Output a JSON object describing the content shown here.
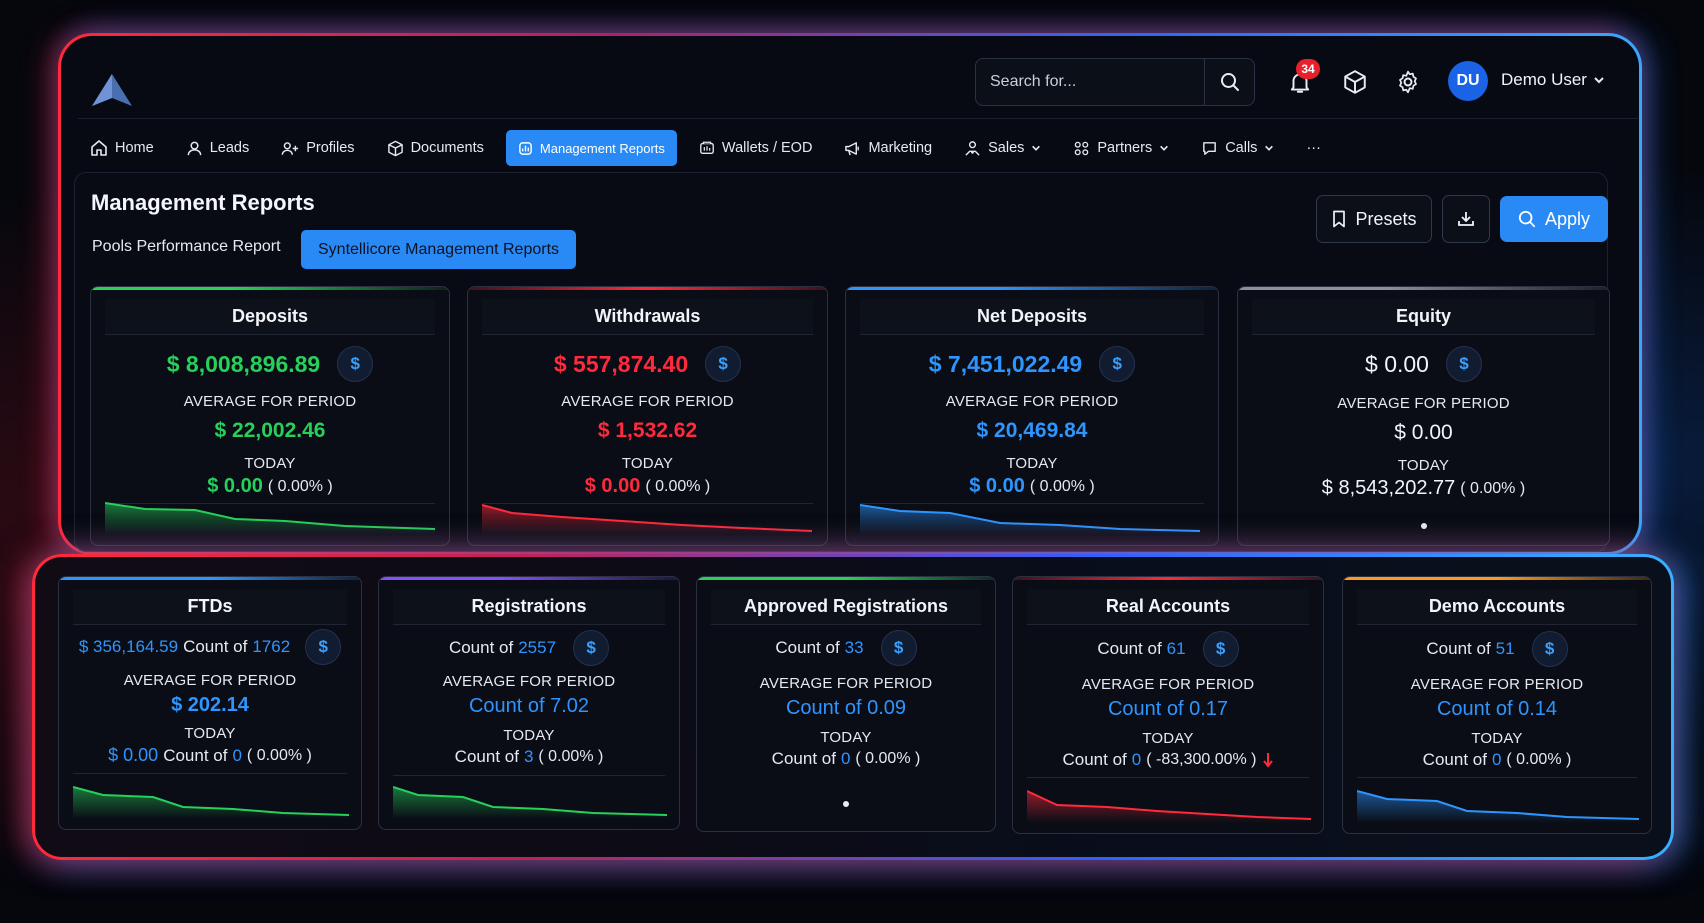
{
  "header": {
    "search_placeholder": "Search for...",
    "notifications_count": "34",
    "user_initials": "DU",
    "user_name": "Demo User"
  },
  "nav": {
    "items": [
      {
        "label": "Home",
        "icon": "home-icon"
      },
      {
        "label": "Leads",
        "icon": "user-icon"
      },
      {
        "label": "Profiles",
        "icon": "users-icon"
      },
      {
        "label": "Documents",
        "icon": "box-icon"
      },
      {
        "label": "Management Reports",
        "icon": "reports-icon",
        "active": true
      },
      {
        "label": "Wallets / EOD",
        "icon": "wallet-icon"
      },
      {
        "label": "Marketing",
        "icon": "megaphone-icon"
      },
      {
        "label": "Sales",
        "icon": "sales-icon"
      },
      {
        "label": "Partners",
        "icon": "partners-icon"
      },
      {
        "label": "Calls",
        "icon": "chat-icon"
      },
      {
        "label": "···",
        "icon": "more-icon"
      }
    ]
  },
  "page": {
    "title": "Management Reports",
    "tabs": [
      "Pools Performance Report",
      "Syntellicore Management Reports"
    ],
    "presets_label": "Presets",
    "apply_label": "Apply"
  },
  "colors": {
    "green": "#27d05a",
    "red": "#ff2a3c",
    "blue": "#2e95ff",
    "accent": "#2a8af5",
    "purple": "#8a4dff",
    "orange": "#ff9a1a",
    "gray": "#8a909c"
  },
  "top_cards": [
    {
      "title": "Deposits",
      "value": "$ 8,008,896.89",
      "avg_label": "AVERAGE FOR PERIOD",
      "avg": "$ 22,002.46",
      "today_label": "TODAY",
      "today": "$ 0.00",
      "today_pct": "( 0.00% )"
    },
    {
      "title": "Withdrawals",
      "value": "$ 557,874.40",
      "avg_label": "AVERAGE FOR PERIOD",
      "avg": "$ 1,532.62",
      "today_label": "TODAY",
      "today": "$ 0.00",
      "today_pct": "( 0.00% )"
    },
    {
      "title": "Net Deposits",
      "value": "$ 7,451,022.49",
      "avg_label": "AVERAGE FOR PERIOD",
      "avg": "$ 20,469.84",
      "today_label": "TODAY",
      "today": "$ 0.00",
      "today_pct": "( 0.00% )"
    },
    {
      "title": "Equity",
      "value": "$ 0.00",
      "avg_label": "AVERAGE FOR PERIOD",
      "avg": "$ 0.00",
      "today_label": "TODAY",
      "today": "$ 8,543,202.77",
      "today_pct": "( 0.00% )"
    }
  ],
  "bottom_cards": [
    {
      "title": "FTDs",
      "amount": "$ 356,164.59",
      "count_prefix": "Count of",
      "count": "1762",
      "avg_label": "AVERAGE FOR PERIOD",
      "avg": "$ 202.14",
      "today_label": "TODAY",
      "today_amount": "$ 0.00",
      "today_count": "0",
      "today_pct": "( 0.00% )"
    },
    {
      "title": "Registrations",
      "count_prefix": "Count of",
      "count": "2557",
      "avg_label": "AVERAGE FOR PERIOD",
      "avg": "Count of 7.02",
      "today_label": "TODAY",
      "today_count": "3",
      "today_pct": "( 0.00% )"
    },
    {
      "title": "Approved Registrations",
      "count_prefix": "Count of",
      "count": "33",
      "avg_label": "AVERAGE FOR PERIOD",
      "avg": "Count of 0.09",
      "today_label": "TODAY",
      "today_count": "0",
      "today_pct": "( 0.00% )"
    },
    {
      "title": "Real Accounts",
      "count_prefix": "Count of",
      "count": "61",
      "avg_label": "AVERAGE FOR PERIOD",
      "avg": "Count of 0.17",
      "today_label": "TODAY",
      "today_count": "0",
      "today_pct": "( -83,300.00% )"
    },
    {
      "title": "Demo Accounts",
      "count_prefix": "Count of",
      "count": "51",
      "avg_label": "AVERAGE FOR PERIOD",
      "avg": "Count of 0.14",
      "today_label": "TODAY",
      "today_count": "0",
      "today_pct": "( 0.00% )"
    }
  ],
  "coin_symbol": "$"
}
